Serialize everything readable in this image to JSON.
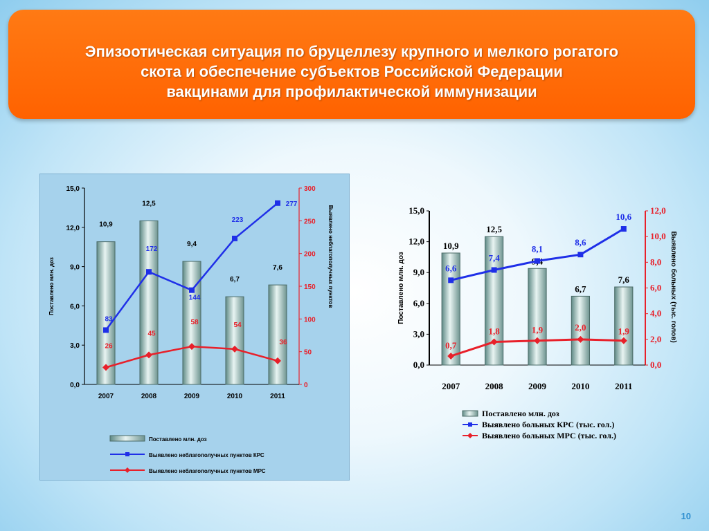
{
  "slide": {
    "title_lines": [
      "Эпизоотическая ситуация по бруцеллезу крупного и мелкого рогатого",
      "скота и обеспечение субъектов Российской Федерации",
      "вакцинами для профилактической иммунизации"
    ],
    "page_number": "10"
  },
  "chart_data": [
    {
      "type": "bar+line",
      "categories": [
        "2007",
        "2008",
        "2009",
        "2010",
        "2011"
      ],
      "ylabel_left": "Поставлено млн. доз",
      "ylabel_right": "Выявлено неблагополучных пунктов",
      "ylim_left": [
        0,
        15
      ],
      "ylim_right": [
        0,
        300
      ],
      "yticks_left": [
        "0,0",
        "3,0",
        "6,0",
        "9,0",
        "12,0",
        "15,0"
      ],
      "yticks_right": [
        "0",
        "50",
        "100",
        "150",
        "200",
        "250",
        "300"
      ],
      "legend_position": "bottom",
      "series": [
        {
          "name": "Поставлено млн. доз",
          "kind": "bar",
          "axis": "left",
          "values": [
            10.9,
            12.5,
            9.4,
            6.7,
            7.6
          ],
          "labels": [
            "10,9",
            "12,5",
            "9,4",
            "6,7",
            "7,6"
          ],
          "color": "#8fb1ac"
        },
        {
          "name": "Выявлено неблагополучных пунктов КРС",
          "kind": "line",
          "axis": "right",
          "values": [
            83,
            172,
            144,
            223,
            277
          ],
          "labels": [
            "83",
            "172",
            "144",
            "223",
            "277"
          ],
          "color": "#1f2fe8"
        },
        {
          "name": "Выявлено неблагополучных пунктов МРС",
          "kind": "line",
          "axis": "right",
          "values": [
            26,
            45,
            58,
            54,
            36
          ],
          "labels": [
            "26",
            "45",
            "58",
            "54",
            "36"
          ],
          "color": "#e8202a"
        }
      ]
    },
    {
      "type": "bar+line",
      "categories": [
        "2007",
        "2008",
        "2009",
        "2010",
        "2011"
      ],
      "ylabel_left": "Поставлено млн. доз",
      "ylabel_right": "Выявлено больных (тыс. голов)",
      "ylim_left": [
        0,
        15
      ],
      "ylim_right": [
        0,
        12
      ],
      "yticks_left": [
        "0,0",
        "3,0",
        "6,0",
        "9,0",
        "12,0",
        "15,0"
      ],
      "yticks_right": [
        "0,0",
        "2,0",
        "4,0",
        "6,0",
        "8,0",
        "10,0",
        "12,0"
      ],
      "legend_position": "bottom",
      "series": [
        {
          "name": "Поставлено млн. доз",
          "kind": "bar",
          "axis": "left",
          "values": [
            10.9,
            12.5,
            9.4,
            6.7,
            7.6
          ],
          "labels": [
            "10,9",
            "12,5",
            "9,4",
            "6,7",
            "7,6"
          ],
          "color": "#8fb1ac"
        },
        {
          "name": "Выявлено больных КРС (тыс. гол.)",
          "kind": "line",
          "axis": "right",
          "values": [
            6.6,
            7.4,
            8.1,
            8.6,
            10.6
          ],
          "labels": [
            "6,6",
            "7,4",
            "8,1",
            "8,6",
            "10,6"
          ],
          "color": "#1f2fe8"
        },
        {
          "name": "Выявлено больных МРС (тыс. гол.)",
          "kind": "line",
          "axis": "right",
          "values": [
            0.7,
            1.8,
            1.9,
            2.0,
            1.9
          ],
          "labels": [
            "0,7",
            "1,8",
            "1,9",
            "2,0",
            "1,9"
          ],
          "color": "#e8202a"
        }
      ]
    }
  ]
}
